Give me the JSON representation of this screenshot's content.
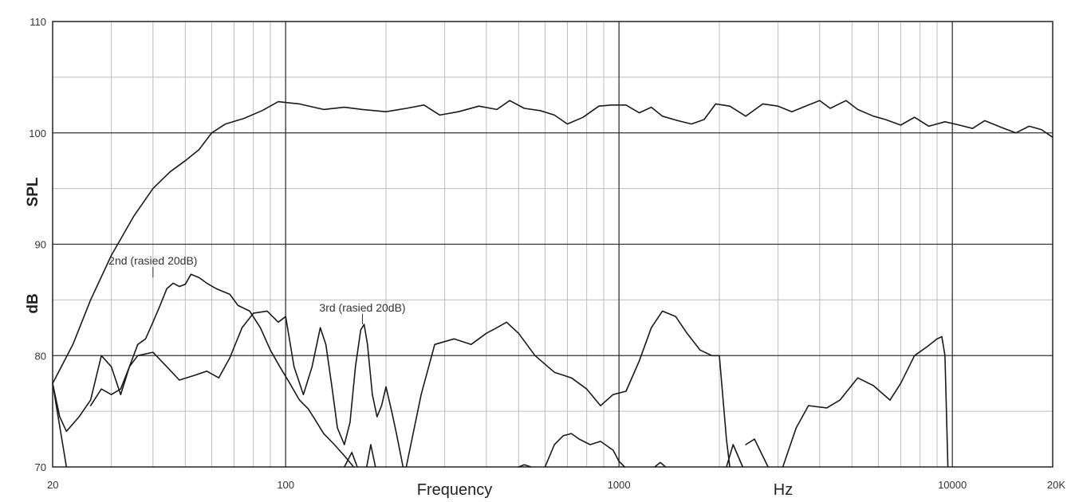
{
  "chart_data": {
    "type": "line",
    "title": "",
    "xscale": "log",
    "xlim": [
      20,
      20000
    ],
    "ylim": [
      70,
      110
    ],
    "grid": true,
    "legend": "none",
    "xlabel": "Frequency",
    "xunit": "Hz",
    "ylabel_parts": [
      "SPL",
      "dB"
    ],
    "x_ticks": [
      {
        "value": 20,
        "label": "20"
      },
      {
        "value": 100,
        "label": "100"
      },
      {
        "value": 1000,
        "label": "1000"
      },
      {
        "value": 10000,
        "label": "10000"
      },
      {
        "value": 20000,
        "label": "20K"
      }
    ],
    "y_ticks": [
      {
        "value": 70,
        "label": "70"
      },
      {
        "value": 80,
        "label": "80"
      },
      {
        "value": 90,
        "label": "90"
      },
      {
        "value": 100,
        "label": "100"
      },
      {
        "value": 110,
        "label": "110"
      }
    ],
    "annotations": [
      {
        "text": "2nd (rasied 20dB)",
        "x": 40,
        "y": 86.8
      },
      {
        "text": "3rd (rasied 20dB)",
        "x": 170,
        "y": 82.6
      }
    ],
    "series": [
      {
        "points": [
          [
            20,
            77.5
          ],
          [
            23,
            81
          ],
          [
            26,
            85
          ],
          [
            30,
            89
          ],
          [
            35,
            92.5
          ],
          [
            40,
            95
          ],
          [
            45,
            96.5
          ],
          [
            50,
            97.5
          ],
          [
            55,
            98.5
          ],
          [
            60,
            100
          ],
          [
            66,
            100.8
          ],
          [
            75,
            101.3
          ],
          [
            85,
            102
          ],
          [
            95,
            102.8
          ],
          [
            110,
            102.6
          ],
          [
            130,
            102.1
          ],
          [
            150,
            102.3
          ],
          [
            170,
            102.1
          ],
          [
            200,
            101.9
          ],
          [
            230,
            102.2
          ],
          [
            260,
            102.5
          ],
          [
            290,
            101.6
          ],
          [
            330,
            101.9
          ],
          [
            380,
            102.4
          ],
          [
            430,
            102.1
          ],
          [
            470,
            102.9
          ],
          [
            520,
            102.2
          ],
          [
            580,
            102.0
          ],
          [
            640,
            101.6
          ],
          [
            700,
            100.8
          ],
          [
            780,
            101.4
          ],
          [
            870,
            102.4
          ],
          [
            950,
            102.5
          ],
          [
            1050,
            102.5
          ],
          [
            1150,
            101.8
          ],
          [
            1250,
            102.3
          ],
          [
            1350,
            101.5
          ],
          [
            1500,
            101.1
          ],
          [
            1650,
            100.8
          ],
          [
            1800,
            101.2
          ],
          [
            1950,
            102.6
          ],
          [
            2150,
            102.4
          ],
          [
            2400,
            101.5
          ],
          [
            2700,
            102.6
          ],
          [
            3000,
            102.4
          ],
          [
            3300,
            101.9
          ],
          [
            3700,
            102.5
          ],
          [
            4000,
            102.9
          ],
          [
            4300,
            102.2
          ],
          [
            4800,
            102.9
          ],
          [
            5200,
            102.1
          ],
          [
            5800,
            101.5
          ],
          [
            6300,
            101.2
          ],
          [
            7000,
            100.7
          ],
          [
            7700,
            101.4
          ],
          [
            8500,
            100.6
          ],
          [
            9500,
            101.0
          ],
          [
            10500,
            100.7
          ],
          [
            11500,
            100.4
          ],
          [
            12500,
            101.1
          ],
          [
            14000,
            100.5
          ],
          [
            15500,
            100.0
          ],
          [
            17000,
            100.6
          ],
          [
            18500,
            100.3
          ],
          [
            20000,
            99.6
          ]
        ]
      },
      {
        "points": [
          [
            20,
            77.5
          ],
          [
            21,
            74.5
          ],
          [
            22,
            73.2
          ],
          [
            24,
            74.5
          ],
          [
            26,
            76.0
          ],
          [
            28,
            80.0
          ],
          [
            30,
            79.0
          ],
          [
            32,
            76.5
          ],
          [
            34,
            79.0
          ],
          [
            36,
            81.0
          ],
          [
            38,
            81.5
          ],
          [
            40,
            83.0
          ],
          [
            42,
            84.5
          ],
          [
            44,
            86.0
          ],
          [
            46,
            86.5
          ],
          [
            48,
            86.2
          ],
          [
            50,
            86.4
          ],
          [
            52,
            87.3
          ],
          [
            55,
            87.0
          ],
          [
            58,
            86.5
          ],
          [
            62,
            86.0
          ],
          [
            68,
            85.5
          ],
          [
            72,
            84.5
          ],
          [
            78,
            84.0
          ],
          [
            84,
            82.5
          ],
          [
            90,
            80.5
          ],
          [
            96,
            79.0
          ],
          [
            103,
            77.5
          ],
          [
            110,
            76.0
          ],
          [
            117,
            75.2
          ],
          [
            124,
            74.0
          ],
          [
            130,
            73.0
          ],
          [
            140,
            72.0
          ],
          [
            150,
            71.0
          ],
          [
            160,
            70.0
          ]
        ]
      },
      {
        "points": [
          [
            20,
            77.5
          ],
          [
            22,
            70.0
          ]
        ]
      },
      {
        "points": [
          [
            26,
            75.5
          ],
          [
            28,
            77.0
          ],
          [
            30,
            76.5
          ],
          [
            32,
            77.0
          ],
          [
            34,
            79.0
          ],
          [
            36,
            80.0
          ],
          [
            40,
            80.3
          ],
          [
            44,
            79.0
          ],
          [
            48,
            77.8
          ],
          [
            53,
            78.2
          ],
          [
            58,
            78.6
          ],
          [
            63,
            78.0
          ],
          [
            68,
            79.8
          ],
          [
            74,
            82.5
          ],
          [
            80,
            83.8
          ],
          [
            88,
            84.0
          ],
          [
            95,
            83.0
          ],
          [
            100,
            83.5
          ],
          [
            106,
            79.0
          ],
          [
            113,
            76.5
          ],
          [
            120,
            79.0
          ],
          [
            127,
            82.5
          ],
          [
            132,
            81.0
          ],
          [
            138,
            77.0
          ],
          [
            143,
            73.5
          ],
          [
            150,
            72.0
          ],
          [
            156,
            74.0
          ],
          [
            162,
            79.0
          ],
          [
            168,
            82.3
          ],
          [
            172,
            82.8
          ],
          [
            176,
            81.0
          ],
          [
            182,
            76.5
          ],
          [
            188,
            74.5
          ],
          [
            194,
            75.5
          ],
          [
            200,
            77.2
          ],
          [
            208,
            75.0
          ],
          [
            215,
            73.0
          ],
          [
            225,
            70.0
          ]
        ]
      },
      {
        "points": [
          [
            150,
            70.0
          ],
          [
            158,
            71.3
          ],
          [
            164,
            70.0
          ]
        ]
      },
      {
        "points": [
          [
            175,
            70.0
          ],
          [
            180,
            72.0
          ],
          [
            186,
            70.0
          ]
        ]
      },
      {
        "points": [
          [
            230,
            70.0
          ],
          [
            255,
            76.5
          ],
          [
            280,
            81.0
          ],
          [
            320,
            81.5
          ],
          [
            360,
            81.0
          ],
          [
            400,
            82.0
          ],
          [
            430,
            82.5
          ],
          [
            460,
            83.0
          ],
          [
            500,
            82.0
          ],
          [
            560,
            80.0
          ],
          [
            640,
            78.5
          ],
          [
            720,
            78.0
          ],
          [
            800,
            77.0
          ],
          [
            880,
            75.5
          ],
          [
            960,
            76.5
          ],
          [
            1050,
            76.8
          ],
          [
            1150,
            79.5
          ],
          [
            1250,
            82.5
          ],
          [
            1350,
            84.0
          ],
          [
            1480,
            83.5
          ],
          [
            1600,
            82.0
          ],
          [
            1750,
            80.5
          ],
          [
            1900,
            80.0
          ],
          [
            2000,
            80.0
          ],
          [
            2100,
            72.5
          ],
          [
            2150,
            70.0
          ]
        ]
      },
      {
        "points": [
          [
            500,
            70.0
          ],
          [
            520,
            70.2
          ],
          [
            545,
            70.0
          ]
        ]
      },
      {
        "points": [
          [
            600,
            70.0
          ],
          [
            640,
            72.0
          ],
          [
            680,
            72.8
          ],
          [
            720,
            73.0
          ],
          [
            760,
            72.5
          ],
          [
            820,
            72.0
          ],
          [
            880,
            72.3
          ],
          [
            960,
            71.5
          ],
          [
            1000,
            70.5
          ],
          [
            1040,
            70.0
          ]
        ]
      },
      {
        "points": [
          [
            1280,
            70.0
          ],
          [
            1330,
            70.4
          ],
          [
            1380,
            70.0
          ]
        ]
      },
      {
        "points": [
          [
            2100,
            70.0
          ],
          [
            2200,
            72.0
          ],
          [
            2350,
            70.0
          ]
        ]
      },
      {
        "points": [
          [
            2400,
            72.0
          ],
          [
            2550,
            72.5
          ],
          [
            2800,
            70.0
          ]
        ]
      },
      {
        "points": [
          [
            3100,
            70.0
          ],
          [
            3400,
            73.5
          ],
          [
            3700,
            75.5
          ],
          [
            4200,
            75.3
          ],
          [
            4600,
            76.0
          ],
          [
            5200,
            78.0
          ],
          [
            5800,
            77.3
          ],
          [
            6500,
            76.0
          ],
          [
            7000,
            77.5
          ],
          [
            7700,
            80.0
          ],
          [
            8400,
            80.8
          ],
          [
            9000,
            81.5
          ],
          [
            9300,
            81.7
          ],
          [
            9500,
            80.0
          ],
          [
            9700,
            70.0
          ]
        ]
      }
    ]
  }
}
